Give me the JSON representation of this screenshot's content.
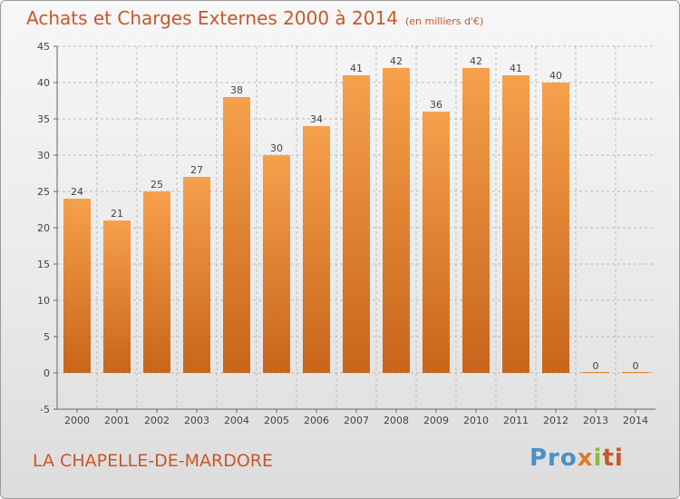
{
  "header": {
    "title": "Achats et Charges Externes 2000 à 2014",
    "subtitle": "(en milliers d'€)"
  },
  "footer": {
    "commune": "LA CHAPELLE-DE-MARDORE",
    "logo": [
      "Pro",
      "x",
      "i",
      "ti"
    ]
  },
  "colors": {
    "title": "#c8572a",
    "bar_top": "#f6a04c",
    "bar_bottom": "#c8651a",
    "grid": "#bbbbbb"
  },
  "chart_data": {
    "type": "bar",
    "title": "Achats et Charges Externes 2000 à 2014",
    "subtitle": "(en milliers d'€)",
    "categories": [
      "2000",
      "2001",
      "2002",
      "2003",
      "2004",
      "2005",
      "2006",
      "2007",
      "2008",
      "2009",
      "2010",
      "2011",
      "2012",
      "2013",
      "2014"
    ],
    "values": [
      24,
      21,
      25,
      27,
      38,
      30,
      34,
      41,
      42,
      36,
      42,
      41,
      40,
      0,
      0
    ],
    "data_labels": [
      "24",
      "21",
      "25",
      "27",
      "38",
      "30",
      "34",
      "41",
      "42",
      "36",
      "42",
      "41",
      "40",
      "0",
      "0"
    ],
    "yticks": [
      "-5",
      "0",
      "5",
      "10",
      "15",
      "20",
      "25",
      "30",
      "35",
      "40",
      "45"
    ],
    "ytick_values": [
      -5,
      0,
      5,
      10,
      15,
      20,
      25,
      30,
      35,
      40,
      45
    ],
    "ylim": [
      -5,
      45
    ],
    "grid": true,
    "xlabel": "",
    "ylabel": ""
  }
}
